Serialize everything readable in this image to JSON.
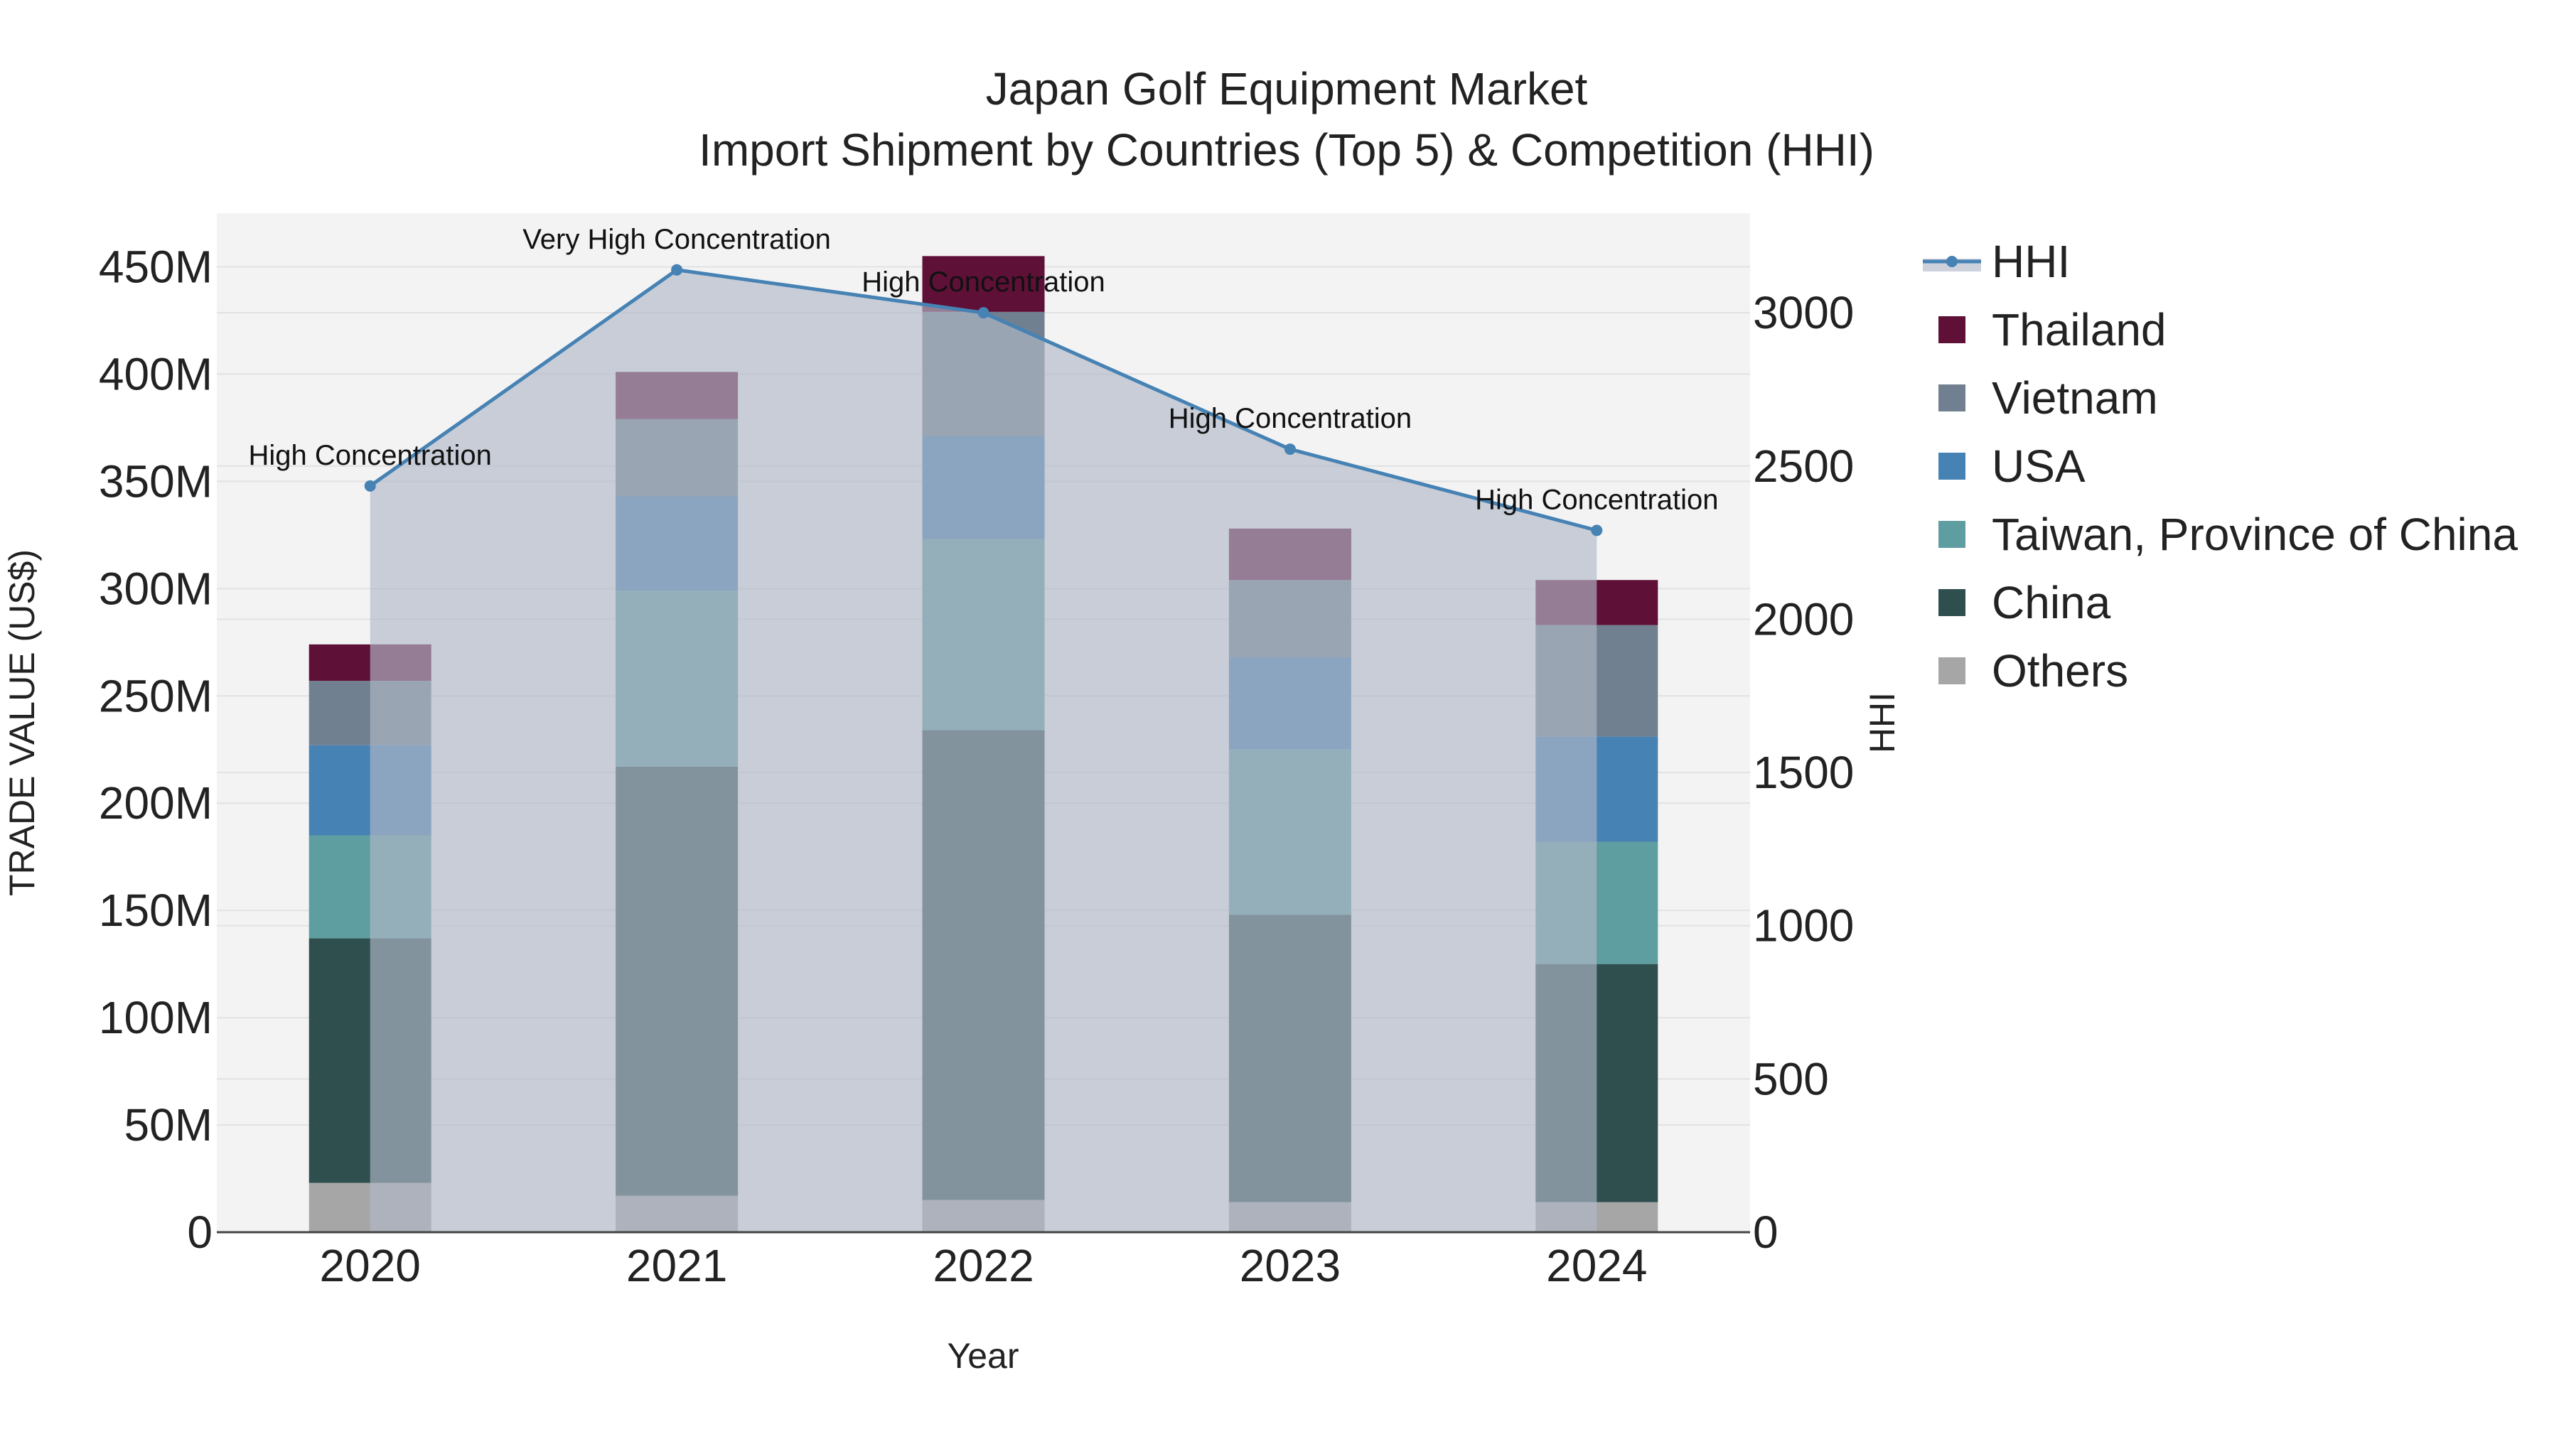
{
  "chart_data": {
    "type": "bar",
    "stacked": true,
    "title_line1": "Japan Golf Equipment Market",
    "title_line2": "Import Shipment by Countries (Top 5) & Competition (HHI)",
    "xlabel": "Year",
    "ylabel": "TRADE VALUE (US$)",
    "y2label": "HHI",
    "categories": [
      "2020",
      "2021",
      "2022",
      "2023",
      "2024"
    ],
    "ylim": [
      0,
      475000000
    ],
    "y2lim": [
      0,
      3325
    ],
    "yticks": [
      {
        "value": 0,
        "label": "0"
      },
      {
        "value": 50000000,
        "label": "50M"
      },
      {
        "value": 100000000,
        "label": "100M"
      },
      {
        "value": 150000000,
        "label": "150M"
      },
      {
        "value": 200000000,
        "label": "200M"
      },
      {
        "value": 250000000,
        "label": "250M"
      },
      {
        "value": 300000000,
        "label": "300M"
      },
      {
        "value": 350000000,
        "label": "350M"
      },
      {
        "value": 400000000,
        "label": "400M"
      },
      {
        "value": 450000000,
        "label": "450M"
      }
    ],
    "y2ticks": [
      {
        "value": 0,
        "label": "0"
      },
      {
        "value": 500,
        "label": "500"
      },
      {
        "value": 1000,
        "label": "1000"
      },
      {
        "value": 1500,
        "label": "1500"
      },
      {
        "value": 2000,
        "label": "2000"
      },
      {
        "value": 2500,
        "label": "2500"
      },
      {
        "value": 3000,
        "label": "3000"
      }
    ],
    "series": [
      {
        "name": "Others",
        "color": "#a6a6a6",
        "values": [
          23000000,
          17000000,
          15000000,
          14000000,
          14000000
        ]
      },
      {
        "name": "China",
        "color": "#2f4f4f",
        "values": [
          114000000,
          200000000,
          219000000,
          134000000,
          111000000
        ]
      },
      {
        "name": "Taiwan, Province of China",
        "color": "#5f9ea0",
        "values": [
          48000000,
          82000000,
          89000000,
          77000000,
          57000000
        ]
      },
      {
        "name": "USA",
        "color": "#4682b4",
        "values": [
          42000000,
          44000000,
          48000000,
          43000000,
          49000000
        ]
      },
      {
        "name": "Vietnam",
        "color": "#708090",
        "values": [
          30000000,
          36000000,
          58000000,
          36000000,
          52000000
        ]
      },
      {
        "name": "Thailand",
        "color": "#5f1037",
        "values": [
          17000000,
          22000000,
          26000000,
          24000000,
          21000000
        ]
      }
    ],
    "hhi": {
      "name": "HHI",
      "color": "#4682b4",
      "fill": "rgba(176,184,200,0.65)",
      "values": [
        2435,
        3140,
        3000,
        2555,
        2290
      ],
      "labels": [
        "High Concentration",
        "Very High Concentration",
        "High Concentration",
        "High Concentration",
        "High Concentration"
      ]
    },
    "legend": [
      "HHI",
      "Thailand",
      "Vietnam",
      "USA",
      "Taiwan, Province of China",
      "China",
      "Others"
    ],
    "legend_position": "right",
    "grid": true
  }
}
